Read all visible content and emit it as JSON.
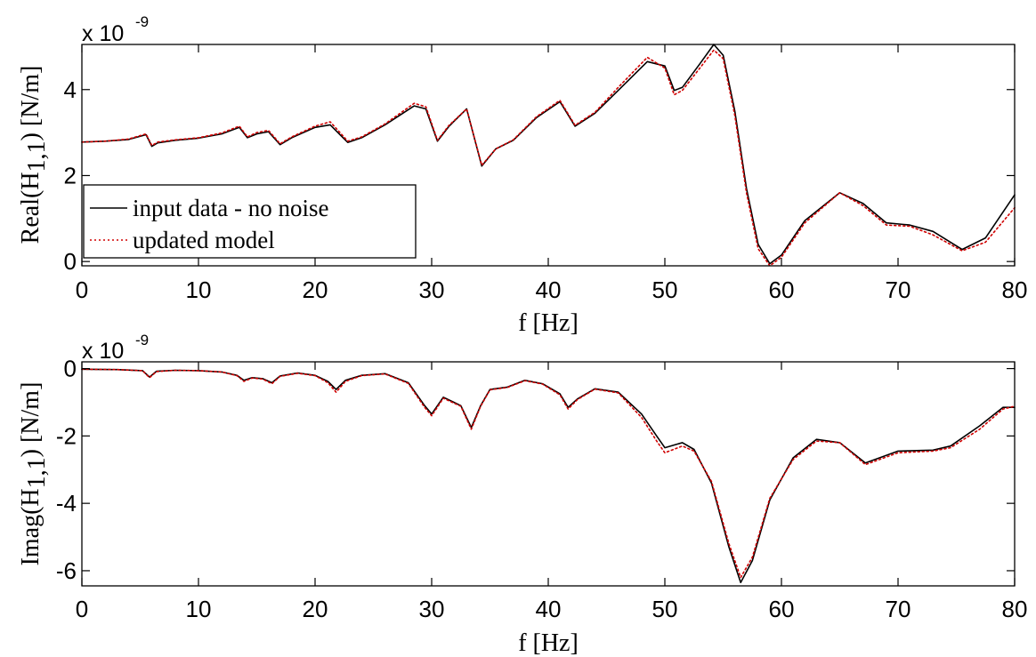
{
  "chart_data": [
    {
      "type": "line",
      "xlabel": "f [Hz]",
      "ylabel": {
        "prefix": "Real(H",
        "subscript": "1,1",
        "suffix": ") [N/m]"
      },
      "exponent": {
        "base": "x 10",
        "power": "-9"
      },
      "xlim": [
        0,
        80
      ],
      "ylim": [
        -0.1,
        5.05
      ],
      "xticks": [
        "0",
        "10",
        "20",
        "30",
        "40",
        "50",
        "60",
        "70",
        "80"
      ],
      "yticks": [
        "0",
        "2",
        "4"
      ],
      "ytick_values": [
        0,
        2,
        4
      ],
      "grid": false,
      "legend_position": "bottom-left",
      "series": [
        {
          "name": "input data - no noise",
          "color": "#000000",
          "style": "solid",
          "x": [
            0,
            2,
            4,
            5.5,
            6,
            6.5,
            8,
            10,
            12,
            13.5,
            14.2,
            15,
            16,
            17,
            18,
            20,
            21.3,
            22.8,
            24,
            26,
            28.5,
            29.5,
            30.5,
            31.5,
            33,
            34.3,
            35.5,
            37,
            39,
            41,
            42.3,
            44,
            46,
            48.5,
            50,
            50.8,
            51.5,
            53,
            54.2,
            55,
            56,
            57,
            58,
            59,
            60,
            62,
            65,
            67,
            69,
            71,
            73,
            75.5,
            77.5,
            80
          ],
          "y": [
            2.78,
            2.8,
            2.84,
            2.95,
            2.68,
            2.76,
            2.82,
            2.87,
            2.97,
            3.12,
            2.88,
            2.97,
            3.02,
            2.72,
            2.88,
            3.12,
            3.18,
            2.77,
            2.88,
            3.18,
            3.62,
            3.55,
            2.8,
            3.15,
            3.55,
            2.22,
            2.62,
            2.82,
            3.35,
            3.72,
            3.15,
            3.45,
            3.98,
            4.65,
            4.55,
            3.98,
            4.05,
            4.6,
            5.05,
            4.8,
            3.5,
            1.7,
            0.4,
            -0.05,
            0.15,
            0.95,
            1.6,
            1.35,
            0.9,
            0.85,
            0.7,
            0.28,
            0.55,
            1.55
          ]
        },
        {
          "name": "updated model",
          "color": "#d00000",
          "style": "dotted",
          "x": [
            0,
            2,
            4,
            5.5,
            6,
            6.5,
            8,
            10,
            12,
            13.5,
            14.2,
            15,
            16,
            17,
            18,
            20,
            21.3,
            22.8,
            24,
            26,
            28.5,
            29.5,
            30.5,
            31.5,
            33,
            34.3,
            35.5,
            37,
            39,
            41,
            42.3,
            44,
            46,
            48.5,
            50,
            50.8,
            51.5,
            53,
            54.2,
            55,
            56,
            57,
            58,
            59,
            60,
            62,
            65,
            67,
            69,
            71,
            73,
            75.5,
            77.5,
            80
          ],
          "y": [
            2.78,
            2.8,
            2.85,
            2.97,
            2.7,
            2.78,
            2.83,
            2.88,
            2.99,
            3.15,
            2.9,
            3.0,
            3.05,
            2.74,
            2.9,
            3.15,
            3.25,
            2.8,
            2.9,
            3.2,
            3.68,
            3.6,
            2.82,
            3.17,
            3.55,
            2.24,
            2.62,
            2.83,
            3.37,
            3.75,
            3.17,
            3.47,
            4.05,
            4.75,
            4.5,
            3.88,
            3.98,
            4.5,
            4.92,
            4.72,
            3.4,
            1.6,
            0.3,
            -0.1,
            0.1,
            0.9,
            1.6,
            1.3,
            0.85,
            0.82,
            0.62,
            0.25,
            0.45,
            1.25
          ]
        }
      ]
    },
    {
      "type": "line",
      "xlabel": "f [Hz]",
      "ylabel": {
        "prefix": "Imag(H",
        "subscript": "1,1",
        "suffix": ") [N/m]"
      },
      "exponent": {
        "base": "x 10",
        "power": "-9"
      },
      "xlim": [
        0,
        80
      ],
      "ylim": [
        -6.45,
        0.2
      ],
      "xticks": [
        "0",
        "10",
        "20",
        "30",
        "40",
        "50",
        "60",
        "70",
        "80"
      ],
      "yticks": [
        "0",
        "-2",
        "-4",
        "-6"
      ],
      "ytick_values": [
        0,
        -2,
        -4,
        -6
      ],
      "grid": false,
      "series": [
        {
          "name": "input data - no noise",
          "color": "#000000",
          "style": "solid",
          "x": [
            0,
            3,
            5.2,
            5.8,
            6.4,
            8,
            10,
            12,
            13.3,
            13.9,
            14.6,
            15.5,
            16.3,
            17,
            18.5,
            20,
            21.1,
            21.8,
            22.6,
            24,
            26,
            28,
            29.4,
            30,
            31,
            32.5,
            33.4,
            34.2,
            35,
            36.5,
            38,
            39.5,
            41,
            41.7,
            42.5,
            44,
            46,
            48,
            49.3,
            50,
            51.5,
            52.5,
            54,
            55.5,
            56.5,
            57.5,
            59,
            61,
            63,
            65,
            67.2,
            70,
            73,
            74.5,
            77,
            79,
            80
          ],
          "y": [
            -0.02,
            -0.03,
            -0.06,
            -0.25,
            -0.08,
            -0.05,
            -0.06,
            -0.1,
            -0.2,
            -0.35,
            -0.27,
            -0.3,
            -0.42,
            -0.22,
            -0.13,
            -0.2,
            -0.38,
            -0.62,
            -0.35,
            -0.2,
            -0.15,
            -0.42,
            -1.1,
            -1.35,
            -0.85,
            -1.1,
            -1.75,
            -1.1,
            -0.62,
            -0.55,
            -0.35,
            -0.45,
            -0.75,
            -1.15,
            -0.9,
            -0.6,
            -0.7,
            -1.35,
            -2.0,
            -2.35,
            -2.2,
            -2.4,
            -3.4,
            -5.3,
            -6.35,
            -5.7,
            -3.9,
            -2.65,
            -2.1,
            -2.2,
            -2.8,
            -2.45,
            -2.42,
            -2.3,
            -1.7,
            -1.15,
            -1.15
          ]
        },
        {
          "name": "updated model",
          "color": "#d00000",
          "style": "dotted",
          "x": [
            0,
            3,
            5.2,
            5.8,
            6.4,
            8,
            10,
            12,
            13.3,
            13.9,
            14.6,
            15.5,
            16.3,
            17,
            18.5,
            20,
            21.1,
            21.8,
            22.6,
            24,
            26,
            28,
            29.4,
            30,
            31,
            32.5,
            33.4,
            34.2,
            35,
            36.5,
            38,
            39.5,
            41,
            41.7,
            42.5,
            44,
            46,
            48,
            49.3,
            50,
            51.5,
            52.5,
            54,
            55.5,
            56.5,
            57.5,
            59,
            61,
            63,
            65,
            67.2,
            70,
            73,
            74.5,
            77,
            79,
            80
          ],
          "y": [
            -0.02,
            -0.03,
            -0.06,
            -0.27,
            -0.09,
            -0.05,
            -0.06,
            -0.1,
            -0.21,
            -0.38,
            -0.28,
            -0.31,
            -0.45,
            -0.23,
            -0.14,
            -0.21,
            -0.42,
            -0.7,
            -0.38,
            -0.21,
            -0.16,
            -0.44,
            -1.15,
            -1.4,
            -0.88,
            -1.12,
            -1.8,
            -1.12,
            -0.63,
            -0.56,
            -0.36,
            -0.46,
            -0.78,
            -1.2,
            -0.92,
            -0.61,
            -0.72,
            -1.45,
            -2.15,
            -2.5,
            -2.3,
            -2.45,
            -3.35,
            -5.2,
            -6.2,
            -5.6,
            -3.85,
            -2.7,
            -2.15,
            -2.2,
            -2.85,
            -2.5,
            -2.45,
            -2.35,
            -1.8,
            -1.2,
            -1.12
          ]
        }
      ]
    }
  ]
}
